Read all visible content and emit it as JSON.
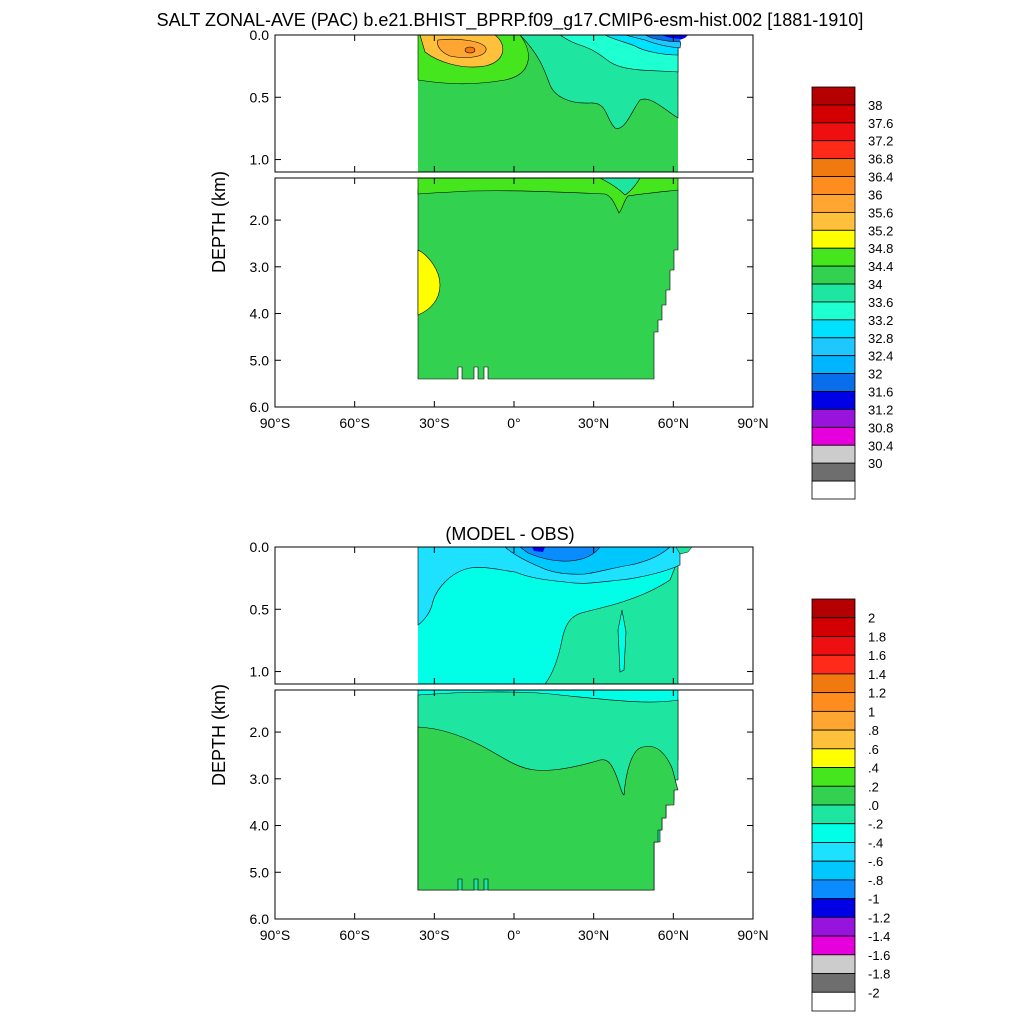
{
  "page": {
    "main_title": "SALT ZONAL-AVE (PAC) b.e21.BHIST_BPRP.f09_g17.CMIP6-esm-hist.002 [1881-1910]"
  },
  "chart_data": [
    {
      "type": "heatmap",
      "title": "SALT ZONAL-AVE (PAC) b.e21.BHIST_BPRP.f09_g17.CMIP6-esm-hist.002 [1881-1910]",
      "ylabel": "DEPTH (km)",
      "xlabel": "",
      "xlim": [
        -90,
        90
      ],
      "x_ticks": [
        -90,
        -60,
        -30,
        0,
        30,
        60,
        90
      ],
      "x_tick_labels": [
        "90°S",
        "60°S",
        "30°S",
        "0°",
        "30°N",
        "60°N",
        "90°N"
      ],
      "upper_panel": {
        "ylim": [
          0.0,
          1.1
        ],
        "y_ticks": [
          0.0,
          0.5,
          1.0
        ],
        "y_tick_labels": [
          "0.0",
          "0.5",
          "1.0"
        ]
      },
      "lower_panel": {
        "ylim": [
          1.1,
          6.0
        ],
        "y_ticks": [
          2.0,
          3.0,
          4.0,
          5.0,
          6.0
        ],
        "y_tick_labels": [
          "2.0",
          "3.0",
          "4.0",
          "5.0",
          "6.0"
        ]
      },
      "colorbar": {
        "labels": [
          "38",
          "37.6",
          "37.2",
          "36.8",
          "36.4",
          "36",
          "35.6",
          "35.2",
          "34.8",
          "34.4",
          "34",
          "33.6",
          "33.2",
          "32.8",
          "32.4",
          "32",
          "31.6",
          "31.2",
          "30.8",
          "30.4",
          "30"
        ],
        "colors": [
          "#b40000",
          "#d20000",
          "#ee1010",
          "#ff2a1a",
          "#f07a10",
          "#ff8c1e",
          "#ffa532",
          "#ffc03c",
          "#ffff00",
          "#46e61e",
          "#32d250",
          "#1ee6a0",
          "#1effd2",
          "#00e1ff",
          "#1ec8ff",
          "#00b4ff",
          "#0a6eeb",
          "#0000e6",
          "#9614dc",
          "#e600dc",
          "#cccccc",
          "#6e6e6e",
          "#ffffff"
        ]
      },
      "regions": {
        "ocean_color": "#32d250",
        "features": [
          {
            "label": "34.4-34.8 shallow south",
            "lat": [
              -35,
              5
            ],
            "depth": [
              0.0,
              0.45
            ],
            "color": "#46e61e"
          },
          {
            "label": "35.2-35.6 subtropical south max",
            "lat": [
              -33,
              -10
            ],
            "depth": [
              0.0,
              0.22
            ],
            "color": "#ffc03c"
          },
          {
            "label": "35.6-36 core",
            "lat": [
              -30,
              -20
            ],
            "depth": [
              0.06,
              0.18
            ],
            "color": "#ffa532"
          },
          {
            "label": "33.6-34 northern surface",
            "lat": [
              5,
              62
            ],
            "depth": [
              0.0,
              0.85
            ],
            "color": "#1ee6a0"
          },
          {
            "label": "33.2-33.6 northern surface",
            "lat": [
              20,
              62
            ],
            "depth": [
              0.0,
              0.35
            ],
            "color": "#1effd2"
          },
          {
            "label": "32.8-33.2",
            "lat": [
              30,
              62
            ],
            "depth": [
              0.0,
              0.15
            ],
            "color": "#00e1ff"
          },
          {
            "label": "<32.4 high latitude",
            "lat": [
              45,
              62
            ],
            "depth": [
              0.0,
              0.05
            ],
            "color": "#0a6eeb"
          },
          {
            "label": "34.8-35.2 deep south",
            "lat": [
              -35,
              -30
            ],
            "depth": [
              2.6,
              3.9
            ],
            "color": "#ffff00"
          }
        ]
      }
    },
    {
      "type": "heatmap",
      "title": "(MODEL - OBS)",
      "ylabel": "DEPTH (km)",
      "xlabel": "",
      "xlim": [
        -90,
        90
      ],
      "x_ticks": [
        -90,
        -60,
        -30,
        0,
        30,
        60,
        90
      ],
      "x_tick_labels": [
        "90°S",
        "60°S",
        "30°S",
        "0°",
        "30°N",
        "60°N",
        "90°N"
      ],
      "upper_panel": {
        "ylim": [
          0.0,
          1.1
        ],
        "y_ticks": [
          0.0,
          0.5,
          1.0
        ],
        "y_tick_labels": [
          "0.0",
          "0.5",
          "1.0"
        ]
      },
      "lower_panel": {
        "ylim": [
          1.1,
          6.0
        ],
        "y_ticks": [
          2.0,
          3.0,
          4.0,
          5.0,
          6.0
        ],
        "y_tick_labels": [
          "2.0",
          "3.0",
          "4.0",
          "5.0",
          "6.0"
        ]
      },
      "colorbar": {
        "labels": [
          "2",
          "1.8",
          "1.6",
          "1.4",
          "1.2",
          "1",
          ".8",
          ".6",
          ".4",
          ".2",
          ".0",
          "-.2",
          "-.4",
          "-.6",
          "-.8",
          "-1",
          "-1.2",
          "-1.4",
          "-1.6",
          "-1.8",
          "-2"
        ],
        "colors": [
          "#b40000",
          "#d20000",
          "#ee1010",
          "#ff2a1a",
          "#f07a10",
          "#ff8c1e",
          "#ffa532",
          "#ffc03c",
          "#ffff00",
          "#46e61e",
          "#32d250",
          "#1ee6a0",
          "#00ffe6",
          "#1ee1ff",
          "#00c8ff",
          "#0a8cff",
          "#0000e6",
          "#9614dc",
          "#e600dc",
          "#cccccc",
          "#6e6e6e",
          "#ffffff"
        ]
      },
      "regions": {
        "ocean_color": "#00ffe6",
        "features": [
          {
            "label": "-0.2-0 northern mid-depth",
            "lat": [
              5,
              62
            ],
            "depth": [
              0.1,
              1.1
            ],
            "color": "#1ee6a0"
          },
          {
            "label": "-0.6--0.4 surface",
            "lat": [
              -35,
              62
            ],
            "depth": [
              0.0,
              0.1
            ],
            "color": "#1ee1ff"
          },
          {
            "label": "-0.8--0.6 surface",
            "lat": [
              -5,
              40
            ],
            "depth": [
              0.0,
              0.06
            ],
            "color": "#00c8ff"
          },
          {
            "label": "<-1 surface spot",
            "lat": [
              5,
              12
            ],
            "depth": [
              0.0,
              0.03
            ],
            "color": "#0a8cff"
          },
          {
            "label": "0-0.2 deep",
            "lat": [
              -35,
              62
            ],
            "depth": [
              2.0,
              5.4
            ],
            "color": "#32d250"
          },
          {
            "label": "-0.2-0 deep upper",
            "lat": [
              -35,
              62
            ],
            "depth": [
              1.2,
              2.9
            ],
            "color": "#1ee6a0"
          }
        ]
      }
    }
  ]
}
